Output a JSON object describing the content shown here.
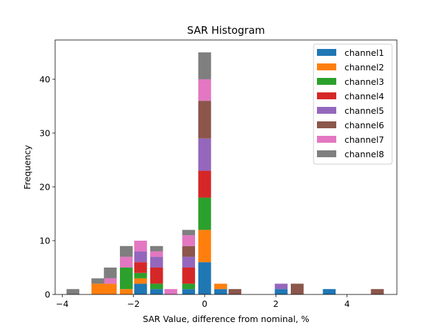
{
  "chart_data": {
    "type": "bar",
    "stacked": true,
    "title": "SAR Histogram",
    "xlabel": "SAR Value, difference from nominal, %",
    "ylabel": "Frequency",
    "xlim": [
      -4.2,
      5.4
    ],
    "ylim": [
      0,
      47.3
    ],
    "xticks": [
      -4,
      -2,
      0,
      2,
      4
    ],
    "yticks": [
      0,
      10,
      20,
      30,
      40
    ],
    "xtick_labels": [
      "−4",
      "−2",
      "0",
      "2",
      "4"
    ],
    "ytick_labels": [
      "0",
      "10",
      "20",
      "30",
      "40"
    ],
    "bin_centers": [
      -3.7,
      -3.3,
      -3.0,
      -2.65,
      -2.2,
      -1.8,
      -1.35,
      -0.95,
      -0.45,
      0.0,
      0.45,
      0.85,
      2.15,
      2.6,
      3.5,
      4.85
    ],
    "bar_width": 0.36,
    "legend_position": "top-right",
    "grid": false,
    "series": [
      {
        "name": "channel1",
        "color": "#1f77b4",
        "values": [
          0,
          0,
          0,
          0,
          0,
          2,
          1,
          0,
          1,
          6,
          1,
          0,
          1,
          0,
          1,
          0
        ]
      },
      {
        "name": "channel2",
        "color": "#ff7f0e",
        "values": [
          0,
          0,
          2,
          2,
          1,
          1,
          0,
          0,
          0,
          6,
          1,
          0,
          0,
          0,
          0,
          0
        ]
      },
      {
        "name": "channel3",
        "color": "#2ca02c",
        "values": [
          0,
          0,
          0,
          0,
          4,
          1,
          1,
          0,
          1,
          6,
          0,
          0,
          0,
          0,
          0,
          0
        ]
      },
      {
        "name": "channel4",
        "color": "#d62728",
        "values": [
          0,
          0,
          0,
          0,
          0,
          2,
          3,
          0,
          3,
          5,
          0,
          0,
          0,
          0,
          0,
          0
        ]
      },
      {
        "name": "channel5",
        "color": "#9467bd",
        "values": [
          0,
          0,
          0,
          0,
          0,
          2,
          2,
          0,
          2,
          6,
          0,
          0,
          1,
          0,
          0,
          0
        ]
      },
      {
        "name": "channel6",
        "color": "#8c564b",
        "values": [
          0,
          0,
          0,
          0,
          0,
          0,
          0,
          0,
          2,
          7,
          0,
          1,
          0,
          2,
          0,
          1
        ]
      },
      {
        "name": "channel7",
        "color": "#e377c2",
        "values": [
          0,
          0,
          0,
          1,
          2,
          2,
          1,
          1,
          2,
          4,
          0,
          0,
          0,
          0,
          0,
          0
        ]
      },
      {
        "name": "channel8",
        "color": "#7f7f7f",
        "values": [
          1,
          0,
          1,
          2,
          2,
          0,
          1,
          0,
          1,
          5,
          0,
          0,
          0,
          0,
          0,
          0
        ]
      }
    ]
  }
}
